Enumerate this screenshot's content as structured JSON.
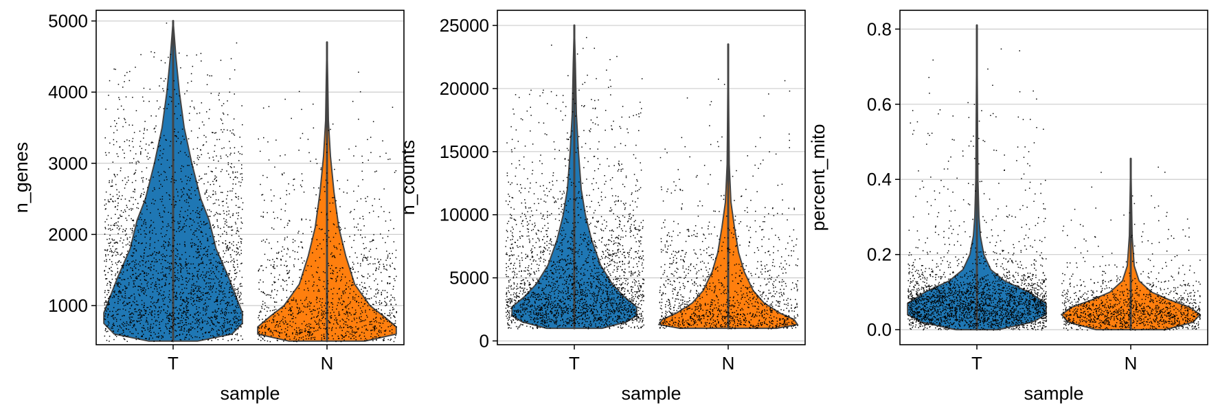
{
  "colors": {
    "T": "#1f77b4",
    "N": "#ff7f0e",
    "points": "#000000",
    "grid": "#cccccc",
    "violin_edge": "#444444"
  },
  "chart_data": [
    {
      "type": "violin",
      "categories": [
        "T",
        "N"
      ],
      "xlabel": "sample",
      "ylabel": "n_genes",
      "ylim": [
        450,
        5150
      ],
      "yticks": [
        1000,
        2000,
        3000,
        4000,
        5000
      ],
      "ytick_labels": [
        "1000",
        "2000",
        "3000",
        "4000",
        "5000"
      ],
      "grid": true,
      "series": [
        {
          "category": "T",
          "min": 500,
          "max": 5000,
          "median": 1150,
          "density": [
            [
              500,
              0.35
            ],
            [
              600,
              0.85
            ],
            [
              750,
              1.0
            ],
            [
              900,
              1.0
            ],
            [
              1100,
              0.92
            ],
            [
              1400,
              0.8
            ],
            [
              1800,
              0.62
            ],
            [
              2200,
              0.52
            ],
            [
              2500,
              0.4
            ],
            [
              3000,
              0.27
            ],
            [
              3500,
              0.16
            ],
            [
              4000,
              0.09
            ],
            [
              4500,
              0.04
            ],
            [
              5000,
              0.0
            ]
          ]
        },
        {
          "category": "N",
          "min": 500,
          "max": 4700,
          "median": 780,
          "density": [
            [
              500,
              0.55
            ],
            [
              600,
              1.0
            ],
            [
              700,
              1.0
            ],
            [
              850,
              0.82
            ],
            [
              1000,
              0.62
            ],
            [
              1300,
              0.4
            ],
            [
              1700,
              0.27
            ],
            [
              2100,
              0.17
            ],
            [
              2600,
              0.1
            ],
            [
              3100,
              0.05
            ],
            [
              3600,
              0.02
            ],
            [
              4200,
              0.01
            ],
            [
              4700,
              0.0
            ]
          ]
        }
      ]
    },
    {
      "type": "violin",
      "categories": [
        "T",
        "N"
      ],
      "xlabel": "sample",
      "ylabel": "n_counts",
      "ylim": [
        -300,
        26200
      ],
      "yticks": [
        0,
        5000,
        10000,
        15000,
        20000,
        25000
      ],
      "ytick_labels": [
        "0",
        "5000",
        "10000",
        "15000",
        "20000",
        "25000"
      ],
      "grid": true,
      "series": [
        {
          "category": "T",
          "min": 1000,
          "max": 25000,
          "median": 2600,
          "density": [
            [
              1000,
              0.4
            ],
            [
              1500,
              0.75
            ],
            [
              2000,
              0.9
            ],
            [
              2700,
              0.9
            ],
            [
              3500,
              0.72
            ],
            [
              4500,
              0.55
            ],
            [
              6000,
              0.38
            ],
            [
              8000,
              0.25
            ],
            [
              10000,
              0.16
            ],
            [
              12000,
              0.1
            ],
            [
              15000,
              0.06
            ],
            [
              18000,
              0.03
            ],
            [
              22000,
              0.015
            ],
            [
              25000,
              0.0
            ]
          ]
        },
        {
          "category": "N",
          "min": 1000,
          "max": 23500,
          "median": 1600,
          "density": [
            [
              1000,
              0.7
            ],
            [
              1300,
              1.0
            ],
            [
              1700,
              0.95
            ],
            [
              2200,
              0.75
            ],
            [
              3000,
              0.52
            ],
            [
              4000,
              0.36
            ],
            [
              5500,
              0.23
            ],
            [
              7000,
              0.15
            ],
            [
              9000,
              0.09
            ],
            [
              11000,
              0.04
            ],
            [
              14000,
              0.015
            ],
            [
              18000,
              0.008
            ],
            [
              23500,
              0.0
            ]
          ]
        }
      ]
    },
    {
      "type": "violin",
      "categories": [
        "T",
        "N"
      ],
      "xlabel": "sample",
      "ylabel": "percent_mito",
      "ylim": [
        -0.04,
        0.85
      ],
      "yticks": [
        0.0,
        0.2,
        0.4,
        0.6,
        0.8
      ],
      "ytick_labels": [
        "0.0",
        "0.2",
        "0.4",
        "0.6",
        "0.8"
      ],
      "grid": true,
      "series": [
        {
          "category": "T",
          "min": 0.0,
          "max": 0.81,
          "median": 0.065,
          "density": [
            [
              0.0,
              0.3
            ],
            [
              0.02,
              0.8
            ],
            [
              0.04,
              1.0
            ],
            [
              0.07,
              1.0
            ],
            [
              0.1,
              0.75
            ],
            [
              0.13,
              0.4
            ],
            [
              0.16,
              0.2
            ],
            [
              0.2,
              0.1
            ],
            [
              0.25,
              0.05
            ],
            [
              0.3,
              0.03
            ],
            [
              0.4,
              0.015
            ],
            [
              0.6,
              0.008
            ],
            [
              0.81,
              0.0
            ]
          ]
        },
        {
          "category": "N",
          "min": 0.0,
          "max": 0.455,
          "median": 0.045,
          "density": [
            [
              0.0,
              0.5
            ],
            [
              0.02,
              0.9
            ],
            [
              0.04,
              1.0
            ],
            [
              0.06,
              0.85
            ],
            [
              0.08,
              0.55
            ],
            [
              0.1,
              0.3
            ],
            [
              0.13,
              0.12
            ],
            [
              0.17,
              0.05
            ],
            [
              0.25,
              0.02
            ],
            [
              0.35,
              0.01
            ],
            [
              0.455,
              0.0
            ]
          ]
        }
      ]
    }
  ]
}
